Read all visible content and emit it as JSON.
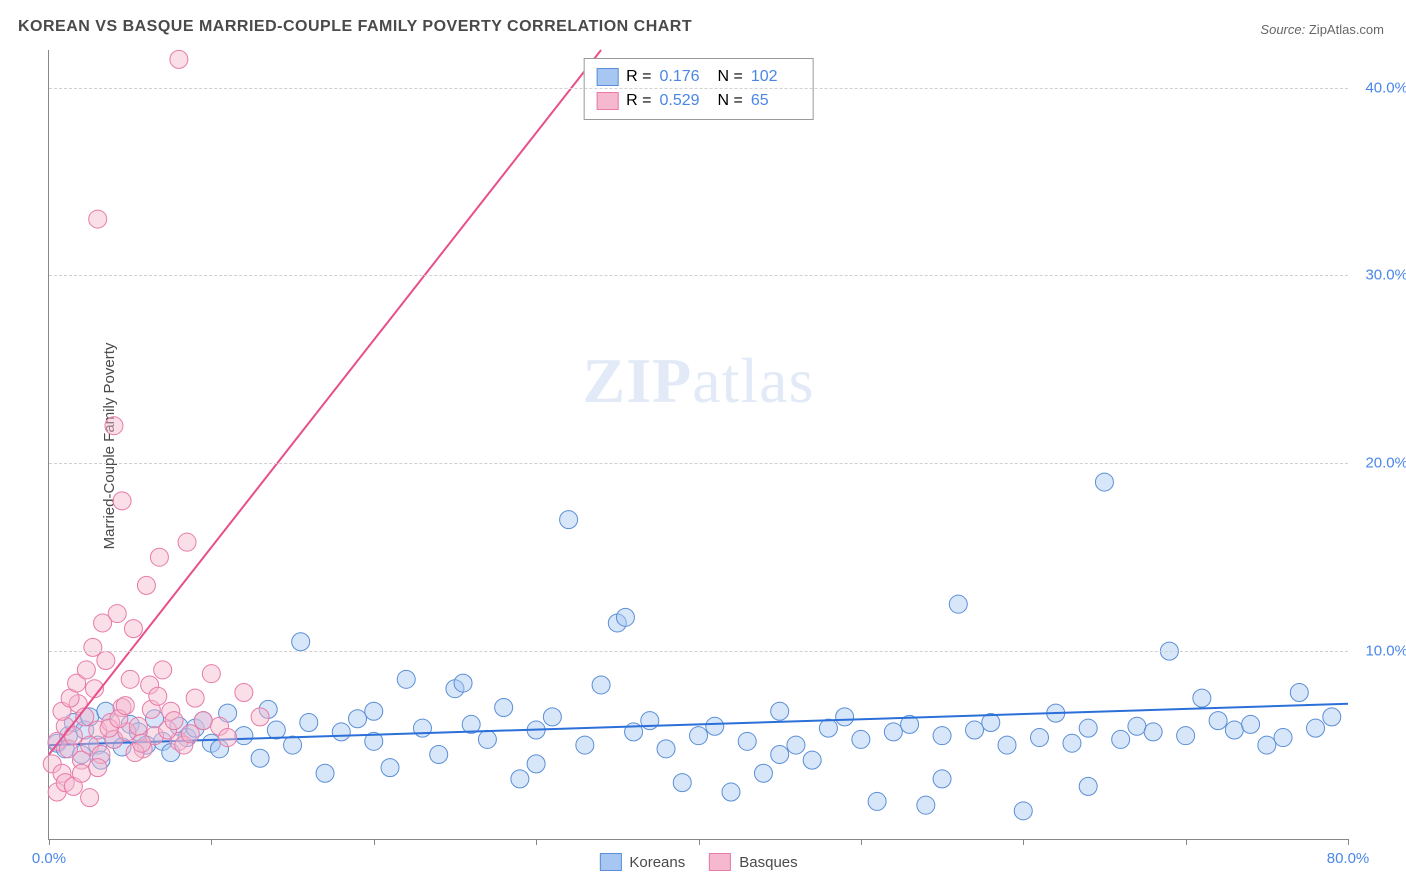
{
  "title": "KOREAN VS BASQUE MARRIED-COUPLE FAMILY POVERTY CORRELATION CHART",
  "source_label": "Source:",
  "source_name": "ZipAtlas.com",
  "ylabel": "Married-Couple Family Poverty",
  "watermark_bold": "ZIP",
  "watermark_rest": "atlas",
  "chart": {
    "type": "scatter",
    "background_color": "#ffffff",
    "grid_color": "#d0d0d0",
    "axis_color": "#888888",
    "xlim": [
      0,
      80
    ],
    "ylim": [
      0,
      42
    ],
    "xticks": [
      0,
      10,
      20,
      30,
      40,
      50,
      60,
      70,
      80
    ],
    "xlabels_shown": {
      "0": "0.0%",
      "80": "80.0%"
    },
    "yticks": [
      10,
      20,
      30,
      40
    ],
    "ylabels": {
      "10": "10.0%",
      "20": "20.0%",
      "30": "30.0%",
      "40": "40.0%"
    },
    "marker_radius": 9,
    "marker_opacity": 0.45,
    "line_width": 2,
    "label_fontsize": 15,
    "title_fontsize": 16,
    "label_color": "#4a86e8"
  },
  "series": [
    {
      "name": "Koreans",
      "fill": "#a7c7f2",
      "stroke": "#5b8fd6",
      "line_color": "#2b6fd8",
      "R": "0.176",
      "N": "102",
      "regression": {
        "x1": 0,
        "y1": 5.0,
        "x2": 80,
        "y2": 7.2
      },
      "points": [
        [
          0.5,
          5.1
        ],
        [
          1,
          4.8
        ],
        [
          1.2,
          5.5
        ],
        [
          1.5,
          6.2
        ],
        [
          2,
          4.5
        ],
        [
          2.2,
          5.8
        ],
        [
          2.5,
          6.5
        ],
        [
          3,
          5.0
        ],
        [
          3.2,
          4.2
        ],
        [
          3.5,
          6.8
        ],
        [
          4,
          5.3
        ],
        [
          4.5,
          4.9
        ],
        [
          5,
          6.1
        ],
        [
          5.5,
          5.7
        ],
        [
          6,
          5.0
        ],
        [
          6.5,
          6.4
        ],
        [
          7,
          5.2
        ],
        [
          7.5,
          4.6
        ],
        [
          8,
          6.0
        ],
        [
          8.5,
          5.4
        ],
        [
          9,
          5.9
        ],
        [
          9.5,
          6.3
        ],
        [
          10,
          5.1
        ],
        [
          10.5,
          4.8
        ],
        [
          11,
          6.7
        ],
        [
          12,
          5.5
        ],
        [
          13,
          4.3
        ],
        [
          13.5,
          6.9
        ],
        [
          14,
          5.8
        ],
        [
          15,
          5.0
        ],
        [
          15.5,
          10.5
        ],
        [
          16,
          6.2
        ],
        [
          17,
          3.5
        ],
        [
          18,
          5.7
        ],
        [
          19,
          6.4
        ],
        [
          20,
          5.2
        ],
        [
          21,
          3.8
        ],
        [
          22,
          8.5
        ],
        [
          23,
          5.9
        ],
        [
          24,
          4.5
        ],
        [
          25,
          8.0
        ],
        [
          25.5,
          8.3
        ],
        [
          26,
          6.1
        ],
        [
          27,
          5.3
        ],
        [
          28,
          7.0
        ],
        [
          29,
          3.2
        ],
        [
          30,
          5.8
        ],
        [
          31,
          6.5
        ],
        [
          32,
          17.0
        ],
        [
          33,
          5.0
        ],
        [
          34,
          8.2
        ],
        [
          35,
          11.5
        ],
        [
          35.5,
          11.8
        ],
        [
          36,
          5.7
        ],
        [
          37,
          6.3
        ],
        [
          38,
          4.8
        ],
        [
          39,
          3.0
        ],
        [
          40,
          5.5
        ],
        [
          41,
          6.0
        ],
        [
          42,
          2.5
        ],
        [
          43,
          5.2
        ],
        [
          44,
          3.5
        ],
        [
          45,
          6.8
        ],
        [
          46,
          5.0
        ],
        [
          47,
          4.2
        ],
        [
          48,
          5.9
        ],
        [
          49,
          6.5
        ],
        [
          50,
          5.3
        ],
        [
          51,
          2.0
        ],
        [
          52,
          5.7
        ],
        [
          53,
          6.1
        ],
        [
          54,
          1.8
        ],
        [
          55,
          5.5
        ],
        [
          56,
          12.5
        ],
        [
          57,
          5.8
        ],
        [
          58,
          6.2
        ],
        [
          59,
          5.0
        ],
        [
          60,
          1.5
        ],
        [
          61,
          5.4
        ],
        [
          62,
          6.7
        ],
        [
          63,
          5.1
        ],
        [
          64,
          5.9
        ],
        [
          65,
          19.0
        ],
        [
          66,
          5.3
        ],
        [
          67,
          6.0
        ],
        [
          68,
          5.7
        ],
        [
          69,
          10.0
        ],
        [
          70,
          5.5
        ],
        [
          71,
          7.5
        ],
        [
          72,
          6.3
        ],
        [
          73,
          5.8
        ],
        [
          74,
          6.1
        ],
        [
          75,
          5.0
        ],
        [
          76,
          5.4
        ],
        [
          77,
          7.8
        ],
        [
          78,
          5.9
        ],
        [
          79,
          6.5
        ],
        [
          64,
          2.8
        ],
        [
          30,
          4.0
        ],
        [
          45,
          4.5
        ],
        [
          55,
          3.2
        ],
        [
          20,
          6.8
        ]
      ]
    },
    {
      "name": "Basques",
      "fill": "#f5b8ce",
      "stroke": "#e87ba8",
      "line_color": "#e84f8a",
      "R": "0.529",
      "N": "65",
      "regression": {
        "x1": 0,
        "y1": 4.5,
        "x2": 34,
        "y2": 42
      },
      "points": [
        [
          0.2,
          4.0
        ],
        [
          0.5,
          5.2
        ],
        [
          0.8,
          3.5
        ],
        [
          1,
          6.0
        ],
        [
          1.2,
          4.8
        ],
        [
          1.5,
          5.5
        ],
        [
          1.8,
          7.2
        ],
        [
          2,
          4.2
        ],
        [
          2.2,
          6.5
        ],
        [
          2.5,
          5.0
        ],
        [
          2.8,
          8.0
        ],
        [
          3,
          5.8
        ],
        [
          3.2,
          4.5
        ],
        [
          3.5,
          9.5
        ],
        [
          3.8,
          6.2
        ],
        [
          4,
          5.3
        ],
        [
          4.2,
          12.0
        ],
        [
          4.5,
          7.0
        ],
        [
          4.8,
          5.7
        ],
        [
          5,
          8.5
        ],
        [
          5.2,
          11.2
        ],
        [
          5.5,
          6.0
        ],
        [
          5.8,
          4.8
        ],
        [
          6,
          13.5
        ],
        [
          6.2,
          8.2
        ],
        [
          6.5,
          5.5
        ],
        [
          6.8,
          15.0
        ],
        [
          7,
          9.0
        ],
        [
          7.5,
          6.8
        ],
        [
          8,
          5.2
        ],
        [
          8.5,
          15.8
        ],
        [
          9,
          7.5
        ],
        [
          9.5,
          6.3
        ],
        [
          10,
          8.8
        ],
        [
          10.5,
          6.0
        ],
        [
          11,
          5.4
        ],
        [
          12,
          7.8
        ],
        [
          13,
          6.5
        ],
        [
          3,
          33.0
        ],
        [
          4,
          22.0
        ],
        [
          4.5,
          18.0
        ],
        [
          8,
          41.5
        ],
        [
          0.5,
          2.5
        ],
        [
          1,
          3.0
        ],
        [
          1.5,
          2.8
        ],
        [
          2,
          3.5
        ],
        [
          2.5,
          2.2
        ],
        [
          3,
          3.8
        ],
        [
          0.8,
          6.8
        ],
        [
          1.3,
          7.5
        ],
        [
          1.7,
          8.3
        ],
        [
          2.3,
          9.0
        ],
        [
          2.7,
          10.2
        ],
        [
          3.3,
          11.5
        ],
        [
          3.7,
          5.9
        ],
        [
          4.3,
          6.4
        ],
        [
          4.7,
          7.1
        ],
        [
          5.3,
          4.6
        ],
        [
          5.7,
          5.1
        ],
        [
          6.3,
          6.9
        ],
        [
          6.7,
          7.6
        ],
        [
          7.3,
          5.8
        ],
        [
          7.7,
          6.3
        ],
        [
          8.3,
          5.0
        ],
        [
          8.7,
          5.6
        ]
      ]
    }
  ],
  "legend": {
    "series1_label": "Koreans",
    "series2_label": "Basques"
  },
  "stats_box": {
    "R_label": "R =",
    "N_label": "N ="
  }
}
